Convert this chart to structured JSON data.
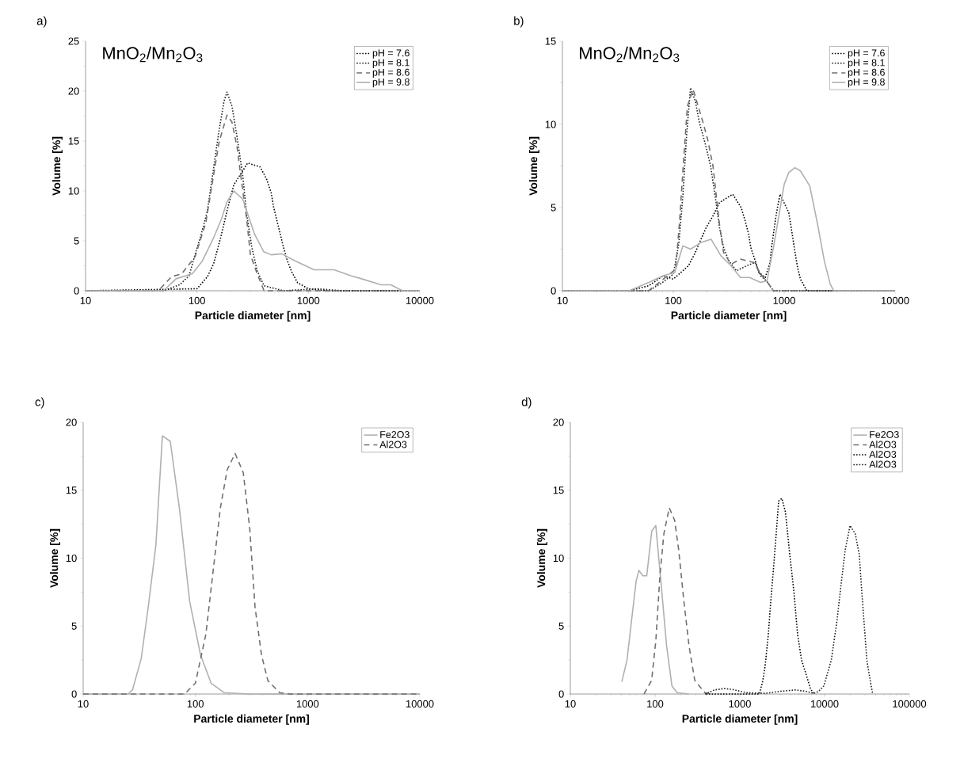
{
  "chart_data": [
    {
      "type": "line",
      "title": "a)",
      "xlabel": "Particle diameter [nm]",
      "ylabel": "Volume [%]",
      "annotations": [
        "MnO$_{2}$/Mn$_{2}$O$_{3}$"
      ],
      "log": "x",
      "xlim": [
        10,
        10000
      ],
      "xticks": [
        10,
        100,
        1000,
        10000
      ],
      "ylim": [
        0,
        25
      ],
      "yticks": [
        0,
        5,
        10,
        15,
        20,
        25
      ],
      "legend": "top right",
      "series": [
        {
          "name": "pH = 7.6",
          "color": "#000000",
          "line_style": "dotted",
          "x": [
            10,
            100,
            124,
            141,
            163,
            186,
            214,
            285,
            369,
            421,
            464,
            487,
            520,
            556,
            593,
            643,
            708,
            800,
            1000,
            1500,
            10000
          ],
          "values": [
            0,
            0.2,
            1.4,
            2.7,
            5.3,
            8.0,
            10.6,
            12.8,
            12.4,
            11.2,
            9.8,
            8.4,
            7.1,
            5.8,
            4.5,
            3.1,
            1.9,
            0.8,
            0.2,
            0,
            0
          ]
        },
        {
          "name": "pH = 8.1",
          "color": "#202020",
          "line_style": "dotted",
          "x": [
            10,
            50,
            70,
            85,
            97,
            107,
            124,
            141,
            158,
            175,
            186,
            206,
            229,
            257,
            279,
            310,
            347,
            400,
            600,
            1200,
            2000,
            10000
          ],
          "values": [
            0,
            0,
            0.6,
            1.5,
            3.8,
            5.3,
            8.0,
            12.3,
            16.1,
            19.0,
            19.9,
            18.5,
            15.4,
            11.6,
            7.7,
            4.4,
            2.0,
            0.5,
            0,
            0.2,
            0,
            0
          ]
        },
        {
          "name": "pH = 8.6",
          "color": "#707070",
          "line_style": "dashed",
          "x": [
            10,
            45,
            59,
            73,
            96,
            120,
            141,
            158,
            186,
            206,
            229,
            250,
            279,
            302,
            347,
            400,
            10000
          ],
          "values": [
            0,
            0,
            1.4,
            1.7,
            3.4,
            6.8,
            11.6,
            14.9,
            17.6,
            16.9,
            14.4,
            11.1,
            7.2,
            3.6,
            1.7,
            0,
            0
          ]
        },
        {
          "name": "pH = 9.8",
          "color": "#b0b0b0",
          "line_style": "solid",
          "x": [
            10,
            50,
            65,
            91,
            112,
            141,
            166,
            186,
            214,
            257,
            295,
            331,
            398,
            464,
            575,
            759,
            1122,
            1700,
            2400,
            3000,
            4500,
            5500,
            7000,
            10000
          ],
          "values": [
            0,
            0,
            1.2,
            1.7,
            3.0,
            5.3,
            7.2,
            8.9,
            10.0,
            9.2,
            7.2,
            5.6,
            3.9,
            3.6,
            3.7,
            3.0,
            2.1,
            2.1,
            1.5,
            1.2,
            0.6,
            0.6,
            0,
            0
          ]
        }
      ]
    },
    {
      "type": "line",
      "title": "b)",
      "xlabel": "Particle diameter [nm]",
      "ylabel": "Volume [%]",
      "annotations": [
        "MnO$_{2}$/Mn$_{2}$O$_{3}$"
      ],
      "log": "x",
      "xlim": [
        10,
        10000
      ],
      "xticks": [
        10,
        100,
        1000,
        10000
      ],
      "ylim": [
        0,
        15
      ],
      "yticks": [
        0,
        5,
        10,
        15
      ],
      "legend": "top right",
      "series": [
        {
          "name": "pH = 7.6",
          "color": "#000000",
          "line_style": "dotted",
          "x": [
            10,
            40,
            60,
            81,
            100,
            137,
            158,
            175,
            198,
            228,
            261,
            343,
            409,
            445,
            478,
            500,
            548,
            590,
            675,
            746,
            769,
            800,
            830,
            870,
            917,
            1100,
            1150,
            1200,
            1260,
            1320,
            1400,
            1600,
            10000
          ],
          "values": [
            0,
            0,
            0.3,
            0.9,
            0.7,
            1.5,
            2.3,
            3.0,
            3.8,
            4.5,
            5.3,
            5.8,
            5.0,
            4.2,
            3.4,
            2.6,
            1.8,
            1.1,
            0.8,
            1.7,
            2.6,
            3.4,
            4.2,
            5.0,
            5.8,
            4.7,
            3.9,
            3.1,
            2.2,
            1.4,
            0.7,
            0,
            0
          ]
        },
        {
          "name": "pH = 8.1",
          "color": "#202020",
          "line_style": "dotted",
          "x": [
            10,
            60,
            80,
            100,
            112,
            122,
            132,
            143,
            158,
            172,
            193,
            217,
            242,
            261,
            284,
            316,
            372,
            457,
            548,
            614,
            690,
            800,
            10000
          ],
          "values": [
            0,
            0,
            0.5,
            1.0,
            2.8,
            5.7,
            9.4,
            12.2,
            11.4,
            10.1,
            8.9,
            7.5,
            5.4,
            3.8,
            2.6,
            1.8,
            1.2,
            1.5,
            1.7,
            0.9,
            0.6,
            0,
            0
          ]
        },
        {
          "name": "pH = 8.6",
          "color": "#707070",
          "line_style": "dashed",
          "x": [
            10,
            60,
            85,
            105,
            114,
            124,
            134,
            151,
            182,
            204,
            228,
            247,
            261,
            284,
            332,
            403,
            533,
            614,
            690,
            800,
            10000
          ],
          "values": [
            0,
            0,
            0.8,
            1.3,
            4.2,
            7.9,
            11.1,
            12.1,
            10.3,
            9.1,
            7.5,
            5.4,
            4.0,
            2.3,
            1.6,
            1.9,
            1.7,
            1.0,
            0.6,
            0,
            0
          ]
        },
        {
          "name": "pH = 9.8",
          "color": "#b0b0b0",
          "line_style": "solid",
          "x": [
            10,
            40,
            60,
            81,
            103,
            122,
            143,
            178,
            219,
            269,
            332,
            403,
            487,
            614,
            700,
            800,
            900,
            1000,
            1100,
            1250,
            1400,
            1700,
            2000,
            2300,
            2600,
            2800,
            10000
          ],
          "values": [
            0,
            0,
            0.5,
            0.9,
            1.1,
            2.7,
            2.5,
            2.9,
            3.1,
            2.1,
            1.5,
            0.8,
            0.8,
            0.5,
            0.6,
            2.6,
            4.6,
            6.4,
            7.1,
            7.4,
            7.2,
            6.3,
            4.0,
            1.8,
            0.4,
            0,
            0
          ]
        }
      ]
    },
    {
      "type": "line",
      "title": "c)",
      "xlabel": "Particle diameter [nm]",
      "ylabel": "Volume [%]",
      "log": "x",
      "xlim": [
        10,
        10000
      ],
      "xticks": [
        10,
        100,
        1000,
        10000
      ],
      "ylim": [
        0,
        20
      ],
      "yticks": [
        0,
        5,
        10,
        15,
        20
      ],
      "legend": "top right",
      "series": [
        {
          "name": "Fe2O3",
          "color": "#b0b0b0",
          "line_style": "solid",
          "x": [
            10,
            25,
            27.5,
            32.9,
            38,
            44.5,
            50.8,
            59.7,
            72,
            89,
            111,
            138,
            181,
            300,
            10000
          ],
          "values": [
            0,
            0,
            0.3,
            2.6,
            6.4,
            11.0,
            19.0,
            18.6,
            13.7,
            6.8,
            2.9,
            0.8,
            0.1,
            0,
            0
          ]
        },
        {
          "name": "Al2O3",
          "color": "#707070",
          "line_style": "dashed",
          "x": [
            10,
            80,
            100,
            124,
            146,
            167,
            192,
            226,
            267,
            305,
            340,
            388,
            442,
            563,
            700,
            10000
          ],
          "values": [
            0,
            0,
            0.8,
            4.4,
            9.5,
            13.7,
            16.5,
            17.7,
            16.3,
            12.2,
            6.4,
            2.9,
            1.0,
            0.1,
            0,
            0
          ]
        }
      ]
    },
    {
      "type": "line",
      "title": "d)",
      "xlabel": "Particle diameter [nm]",
      "ylabel": "Volume [%]",
      "log": "x",
      "xlim": [
        10,
        100000
      ],
      "xticks": [
        10,
        100,
        1000,
        10000,
        100000
      ],
      "ylim": [
        0,
        20
      ],
      "yticks": [
        0,
        5,
        10,
        15,
        20
      ],
      "legend": "top right",
      "series": [
        {
          "name": "Fe2O3",
          "color": "#b0b0b0",
          "line_style": "solid",
          "x": [
            40.5,
            46.6,
            59.7,
            64.5,
            71.7,
            79.7,
            91.4,
            102,
            117,
            137,
            158,
            182,
            250
          ],
          "values": [
            0.9,
            2.5,
            8.3,
            9.1,
            8.7,
            8.7,
            12.0,
            12.4,
            8.3,
            3.5,
            0.6,
            0.1,
            0
          ]
        },
        {
          "name": "Al2O3",
          "color": "#707070",
          "line_style": "dashed",
          "x": [
            74,
            91,
            102,
            114,
            127,
            147,
            170,
            190,
            219,
            252,
            294,
            387,
            450
          ],
          "values": [
            0,
            1.0,
            3.9,
            8.7,
            11.8,
            13.7,
            12.8,
            10.6,
            6.8,
            3.5,
            1.0,
            0.1,
            0
          ]
        },
        {
          "name": "Al2O3",
          "color": "#000000",
          "line_style": "dotted",
          "x": [
            400,
            1700,
            1870,
            1990,
            2170,
            2300,
            2500,
            2700,
            2870,
            3130,
            3450,
            3880,
            4350,
            4800,
            5350,
            6150,
            6800,
            7500
          ],
          "values": [
            0,
            0,
            1.0,
            2.1,
            4.4,
            6.6,
            9.3,
            12.0,
            14.2,
            14.4,
            13.4,
            10.3,
            7.5,
            4.4,
            2.5,
            1.3,
            0.4,
            0
          ]
        },
        {
          "name": "Al2O3",
          "color": "#202020",
          "line_style": "dotted",
          "x": [
            390,
            500,
            650,
            800,
            1200,
            2000,
            3000,
            4500,
            6000,
            7500,
            8500,
            9800,
            12000,
            14000,
            15800,
            17500,
            20000,
            23000,
            25600,
            27500,
            29600,
            31500,
            35400,
            37000
          ],
          "values": [
            0,
            0.3,
            0.4,
            0.35,
            0.1,
            0.05,
            0.2,
            0.3,
            0.2,
            0.05,
            0.2,
            0.6,
            2.5,
            5.4,
            8.3,
            10.6,
            12.4,
            11.8,
            10.3,
            7.5,
            4.8,
            2.5,
            0.6,
            0
          ]
        }
      ]
    }
  ]
}
